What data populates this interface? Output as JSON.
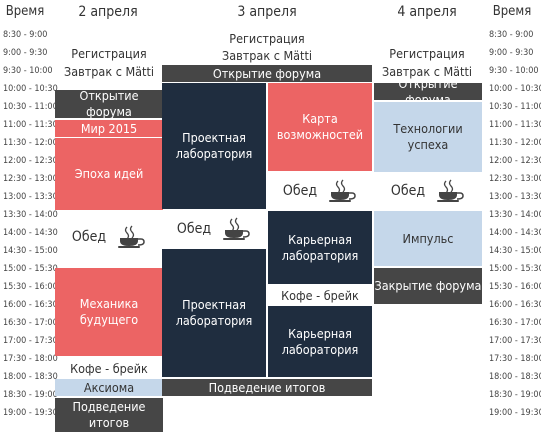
{
  "headers": {
    "time_left": "Время",
    "time_right": "Время",
    "day1": "2 апреля",
    "day2": "3 апреля",
    "day3": "4 апреля"
  },
  "times": [
    "8:30 - 9:00",
    "9:00 - 9:30",
    "9:30 - 10:00",
    "10:00 - 10:30",
    "10:30 - 11:00",
    "11:00 - 11:30",
    "11:30 - 12:00",
    "12:00 - 12:30",
    "12:30 - 13:00",
    "13:00 - 13:30",
    "13:30 - 14:00",
    "14:00 - 14:30",
    "14:30 - 15:00",
    "15:00 - 15:30",
    "15:30 - 16:00",
    "16:00 - 16:30",
    "16:30 - 17:00",
    "17:00 - 17:30",
    "17:30 - 18:00",
    "18:00 - 18:30",
    "18:30 - 19:00",
    "19:00 - 19:30"
  ],
  "day1": {
    "registration": "Регистрация",
    "breakfast": "Завтрак с Mätti",
    "opening": "Открытие форума",
    "mir": "Мир 2015",
    "ideas": "Эпоха идей",
    "lunch": "Обед",
    "mechanics": "Механика будущего",
    "coffee": "Кофе - брейк",
    "axiom": "Аксиома",
    "summary": "Подведение итогов"
  },
  "day2": {
    "registration": "Регистрация",
    "breakfast": "Завтрак с Mätti",
    "opening": "Открытие форума",
    "project_lab_1": "Проектная лаборатория",
    "opportunity_map": "Карта возможностей",
    "lunch_left": "Обед",
    "lunch_right": "Обед",
    "career_lab_1": "Карьерная лаборатория",
    "project_lab_2": "Проектная лаборатория",
    "coffee": "Кофе - брейк",
    "career_lab_2": "Карьерная лаборатория",
    "summary": "Подведение итогов"
  },
  "day3": {
    "registration": "Регистрация",
    "breakfast": "Завтрак с Mätti",
    "opening": "Открытие форума",
    "success_tech": "Технологии успеха",
    "lunch": "Обед",
    "impulse": "Импульс",
    "closing": "Закрытие форума"
  },
  "icons": {
    "coffee": "coffee-cup-icon"
  },
  "colors": {
    "dark": "#464646",
    "navy": "#1f2d3f",
    "red": "#ec6464",
    "blue": "#c5d7ea"
  }
}
